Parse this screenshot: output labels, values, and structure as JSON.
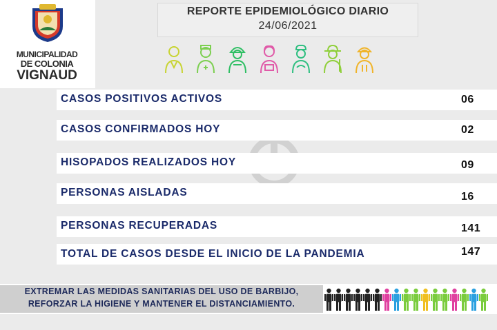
{
  "header": {
    "logo": {
      "line1": "MUNICIPALIDAD",
      "line2": "DE COLONIA",
      "line3": "VIGNAUD"
    },
    "title": "REPORTE EPIDEMIOLÓGICO DIARIO",
    "date": "24/06/2021",
    "worker_icons": [
      {
        "name": "doctor-icon",
        "color": "#c8d432"
      },
      {
        "name": "nurse-icon",
        "color": "#7ccf50"
      },
      {
        "name": "firefighter-icon",
        "color": "#2fbf64"
      },
      {
        "name": "cashier-icon",
        "color": "#e05aa8"
      },
      {
        "name": "cook-icon",
        "color": "#2fbf80"
      },
      {
        "name": "farmer-icon",
        "color": "#8fcf3a"
      },
      {
        "name": "worker-icon",
        "color": "#f0b42a"
      }
    ]
  },
  "stats": [
    {
      "label": "CASOS POSITIVOS ACTIVOS",
      "value": "06"
    },
    {
      "label": "CASOS CONFIRMADOS HOY",
      "value": "02"
    },
    {
      "label": "HISOPADOS REALIZADOS HOY",
      "value": "09"
    },
    {
      "label": "PERSONAS AISLADAS",
      "value": "16"
    },
    {
      "label": "PERSONAS RECUPERADAS",
      "value": "141"
    },
    {
      "label": "TOTAL DE CASOS DESDE EL INICIO DE LA PANDEMIA",
      "value": "147"
    }
  ],
  "footer": {
    "line1": "EXTREMAR LAS MEDIDAS SANITARIAS DEL USO DE BARBIJO,",
    "line2": "REFORZAR LA HIGIENE Y MANTENER EL DISTANCIAMIENTO.",
    "people_colors": [
      "#222222",
      "#222222",
      "#222222",
      "#222222",
      "#222222",
      "#222222",
      "#e040a0",
      "#2aa0e0",
      "#7acc3c",
      "#7acc3c",
      "#f0c020",
      "#7acc3c",
      "#7acc3c",
      "#e040a0",
      "#7acc3c",
      "#2aa0e0",
      "#7acc3c"
    ]
  }
}
